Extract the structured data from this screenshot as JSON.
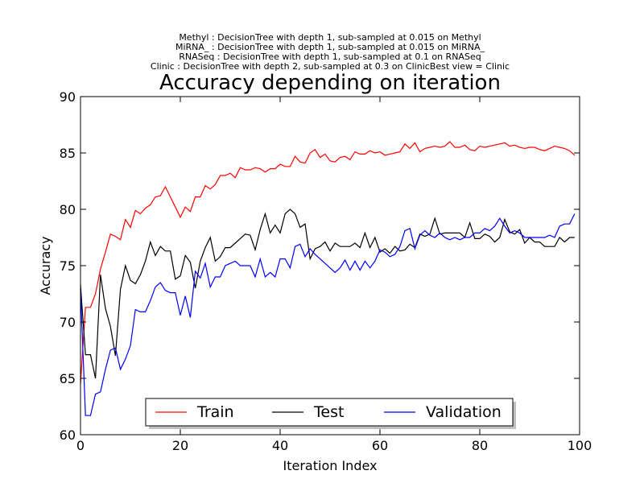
{
  "subtitles": [
    "Methyl : DecisionTree with depth 1,  sub-sampled at 0.015 on Methyl",
    "MiRNA_ : DecisionTree with depth 1,  sub-sampled at 0.015 on MiRNA_",
    "RNASeq : DecisionTree with depth 1,  sub-sampled at 0.1 on RNASeq",
    "Clinic : DecisionTree with depth 2,  sub-sampled at 0.3 on ClinicBest view = Clinic"
  ],
  "chart_data": {
    "type": "line",
    "title": "Accuracy depending on iteration",
    "xlabel": "Iteration Index",
    "ylabel": "Accuracy",
    "xlim": [
      0,
      100
    ],
    "ylim": [
      60,
      90
    ],
    "xticks": [
      0,
      20,
      40,
      60,
      80,
      100
    ],
    "yticks": [
      60,
      65,
      70,
      75,
      80,
      85,
      90
    ],
    "legend_position": "bottom-center",
    "x": [
      0,
      1,
      2,
      3,
      4,
      5,
      6,
      7,
      8,
      9,
      10,
      11,
      12,
      13,
      14,
      15,
      16,
      17,
      18,
      19,
      20,
      21,
      22,
      23,
      24,
      25,
      26,
      27,
      28,
      29,
      30,
      31,
      32,
      33,
      34,
      35,
      36,
      37,
      38,
      39,
      40,
      41,
      42,
      43,
      44,
      45,
      46,
      47,
      48,
      49,
      50,
      51,
      52,
      53,
      54,
      55,
      56,
      57,
      58,
      59,
      60,
      61,
      62,
      63,
      64,
      65,
      66,
      67,
      68,
      69,
      70,
      71,
      72,
      73,
      74,
      75,
      76,
      77,
      78,
      79,
      80,
      81,
      82,
      83,
      84,
      85,
      86,
      87,
      88,
      89,
      90,
      91,
      92,
      93,
      94,
      95,
      96,
      97,
      98,
      99
    ],
    "series": [
      {
        "name": "Train",
        "color": "#ff0000",
        "values": [
          64.5,
          71.3,
          71.3,
          72.5,
          74.7,
          76.2,
          77.8,
          77.6,
          77.3,
          79.1,
          78.4,
          79.9,
          79.6,
          80.1,
          80.4,
          81.1,
          81.2,
          82.0,
          81.1,
          80.2,
          79.3,
          80.2,
          79.8,
          81.1,
          81.1,
          82.1,
          81.8,
          82.2,
          83.0,
          83.0,
          83.2,
          82.8,
          83.7,
          83.5,
          83.5,
          83.7,
          83.6,
          83.3,
          83.6,
          83.6,
          84.0,
          83.8,
          83.8,
          84.7,
          84.2,
          84.1,
          85.0,
          85.3,
          84.6,
          84.9,
          84.3,
          84.2,
          84.6,
          84.7,
          84.4,
          85.1,
          84.9,
          84.9,
          85.2,
          85.0,
          85.1,
          84.8,
          84.9,
          85.0,
          85.1,
          85.8,
          85.4,
          85.9,
          85.1,
          85.4,
          85.5,
          85.6,
          85.5,
          85.6,
          86.0,
          85.5,
          85.5,
          85.7,
          85.3,
          85.2,
          85.6,
          85.5,
          85.6,
          85.7,
          85.8,
          85.9,
          85.6,
          85.7,
          85.5,
          85.4,
          85.5,
          85.5,
          85.3,
          85.2,
          85.4,
          85.6,
          85.5,
          85.4,
          85.2,
          84.8
        ]
      },
      {
        "name": "Test",
        "color": "#000000",
        "values": [
          73.3,
          67.1,
          67.1,
          65.0,
          74.2,
          71.2,
          69.6,
          67.0,
          72.9,
          75.0,
          73.7,
          73.4,
          74.2,
          75.4,
          77.1,
          75.9,
          76.7,
          76.3,
          76.3,
          73.8,
          74.1,
          75.9,
          75.3,
          73.0,
          75.4,
          76.6,
          77.5,
          75.4,
          75.8,
          76.6,
          76.6,
          77.0,
          77.4,
          77.8,
          77.7,
          76.4,
          78.2,
          79.6,
          77.9,
          78.6,
          77.9,
          79.6,
          80.0,
          79.6,
          78.4,
          78.7,
          75.6,
          76.5,
          76.7,
          77.1,
          76.3,
          77.0,
          76.7,
          76.7,
          76.7,
          77.0,
          76.6,
          77.9,
          76.6,
          77.5,
          76.2,
          76.5,
          76.1,
          76.7,
          76.3,
          76.4,
          76.9,
          76.6,
          77.8,
          77.6,
          77.8,
          79.2,
          77.8,
          77.9,
          77.9,
          77.9,
          77.9,
          77.5,
          78.8,
          77.4,
          77.4,
          77.8,
          77.6,
          77.1,
          77.5,
          79.1,
          78.0,
          77.8,
          78.2,
          77.0,
          77.5,
          77.1,
          77.1,
          76.7,
          76.7,
          76.7,
          77.5,
          77.1,
          77.5,
          77.5
        ]
      },
      {
        "name": "Validation",
        "color": "#0000ff",
        "values": [
          72.9,
          61.7,
          61.7,
          63.6,
          63.8,
          65.8,
          67.5,
          67.7,
          65.8,
          66.7,
          67.9,
          71.1,
          70.9,
          70.9,
          71.9,
          73.1,
          73.5,
          72.8,
          72.6,
          72.6,
          70.6,
          72.3,
          70.4,
          74.5,
          73.9,
          75.2,
          73.1,
          74.0,
          74.0,
          75.0,
          75.2,
          75.4,
          75.0,
          75.0,
          75.0,
          74.0,
          75.6,
          74.0,
          74.4,
          74.0,
          75.6,
          75.6,
          74.8,
          76.7,
          76.9,
          75.8,
          76.5,
          76.0,
          75.6,
          75.2,
          74.8,
          74.4,
          74.8,
          75.5,
          74.6,
          75.4,
          74.6,
          75.4,
          74.8,
          75.4,
          76.4,
          76.2,
          75.8,
          76.0,
          76.7,
          78.1,
          78.3,
          76.5,
          77.7,
          78.1,
          77.7,
          77.5,
          77.9,
          77.5,
          77.3,
          77.5,
          77.3,
          77.5,
          77.5,
          77.9,
          77.9,
          78.3,
          78.1,
          78.5,
          79.2,
          78.5,
          77.9,
          78.1,
          77.9,
          77.5,
          77.5,
          77.5,
          77.5,
          77.5,
          77.7,
          77.5,
          78.5,
          78.7,
          78.7,
          79.6
        ]
      }
    ]
  }
}
